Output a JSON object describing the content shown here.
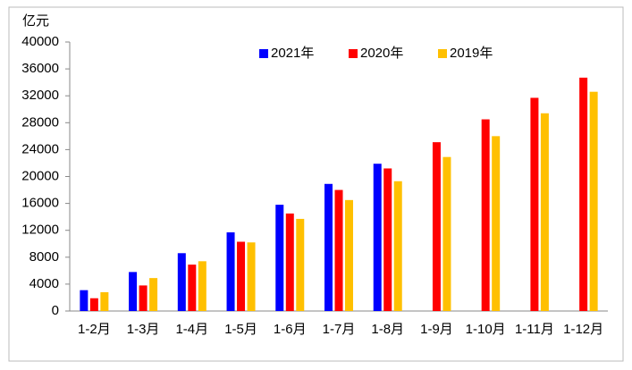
{
  "chart_data": {
    "type": "bar",
    "y_label": "亿元",
    "categories": [
      "1-2月",
      "1-3月",
      "1-4月",
      "1-5月",
      "1-6月",
      "1-7月",
      "1-8月",
      "1-9月",
      "1-10月",
      "1-11月",
      "1-12月"
    ],
    "series": [
      {
        "name": "2021年",
        "color": "#0000ff",
        "values": [
          3100,
          5800,
          8600,
          11700,
          15800,
          18900,
          21900,
          null,
          null,
          null,
          null
        ]
      },
      {
        "name": "2020年",
        "color": "#ff0000",
        "values": [
          1900,
          3800,
          6900,
          10300,
          14500,
          18000,
          21200,
          25100,
          28500,
          31700,
          34700
        ]
      },
      {
        "name": "2019年",
        "color": "#ffc000",
        "values": [
          2800,
          4900,
          7400,
          10200,
          13700,
          16500,
          19300,
          22900,
          26000,
          29400,
          32600
        ]
      }
    ],
    "ylim": [
      0,
      40000
    ],
    "yticks": [
      0,
      4000,
      8000,
      12000,
      16000,
      20000,
      24000,
      28000,
      32000,
      36000,
      40000
    ],
    "grid": false,
    "legend": "top"
  }
}
